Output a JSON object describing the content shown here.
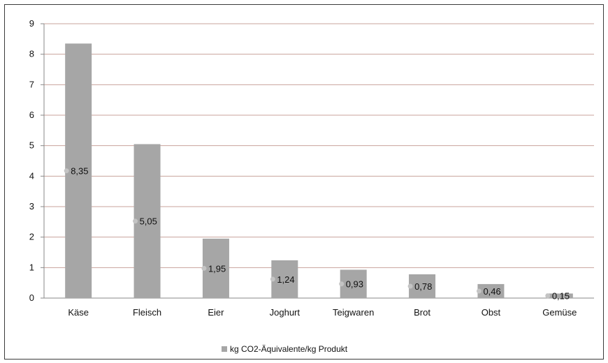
{
  "chart_data": {
    "type": "bar",
    "categories": [
      "Käse",
      "Fleisch",
      "Eier",
      "Joghurt",
      "Teigwaren",
      "Brot",
      "Obst",
      "Gemüse"
    ],
    "series": [
      {
        "name": "kg CO2-Äquivalente/kg Produkt",
        "values": [
          8.35,
          5.05,
          1.95,
          1.24,
          0.93,
          0.78,
          0.46,
          0.15
        ],
        "data_labels": [
          "8,35",
          "5,05",
          "1,95",
          "1,24",
          "0,93",
          "0,78",
          "0,46",
          "0,15"
        ],
        "color": "#a6a6a6"
      }
    ],
    "yticks": [
      "0",
      "1",
      "2",
      "3",
      "4",
      "5",
      "6",
      "7",
      "8",
      "9"
    ],
    "ylim": [
      0,
      9
    ],
    "title": "",
    "xlabel": "",
    "ylabel": "",
    "grid": true,
    "gridline_color": "#c8a39b",
    "legend_position": "bottom"
  }
}
